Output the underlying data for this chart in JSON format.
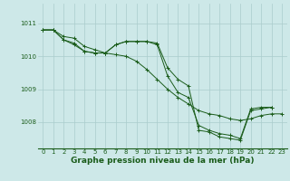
{
  "background_color": "#cde8e8",
  "grid_color": "#aacccc",
  "line_color": "#1a5c1a",
  "marker_color": "#1a5c1a",
  "xlabel": "Graphe pression niveau de la mer (hPa)",
  "xlabel_fontsize": 6.5,
  "tick_fontsize": 5.0,
  "yticks": [
    1008,
    1009,
    1010,
    1011
  ],
  "ylim": [
    1007.2,
    1011.6
  ],
  "xlim": [
    -0.5,
    23.5
  ],
  "xticks": [
    0,
    1,
    2,
    3,
    4,
    5,
    6,
    7,
    8,
    9,
    10,
    11,
    12,
    13,
    14,
    15,
    16,
    17,
    18,
    19,
    20,
    21,
    22,
    23
  ],
  "series": [
    [
      1010.8,
      1010.8,
      1010.6,
      1010.55,
      1010.3,
      1010.2,
      1010.1,
      1010.05,
      1010.0,
      1009.85,
      1009.6,
      1009.3,
      1009.0,
      1008.75,
      1008.55,
      1008.35,
      1008.25,
      1008.2,
      1008.1,
      1008.05,
      1008.1,
      1008.2,
      1008.25,
      1008.25
    ],
    [
      1010.8,
      1010.8,
      1010.5,
      1010.4,
      1010.15,
      1010.1,
      1010.1,
      1010.35,
      1010.45,
      1010.45,
      1010.45,
      1010.4,
      1009.65,
      1009.3,
      1009.1,
      1007.75,
      1007.7,
      1007.55,
      1007.5,
      1007.45,
      1008.35,
      1008.4,
      1008.45,
      null
    ],
    [
      1010.8,
      1010.8,
      1010.5,
      1010.35,
      1010.15,
      1010.1,
      1010.1,
      1010.35,
      1010.45,
      1010.45,
      1010.45,
      1010.35,
      1009.4,
      1008.9,
      1008.75,
      1007.9,
      1007.75,
      1007.65,
      1007.6,
      1007.5,
      1008.4,
      1008.45,
      1008.45,
      null
    ]
  ]
}
